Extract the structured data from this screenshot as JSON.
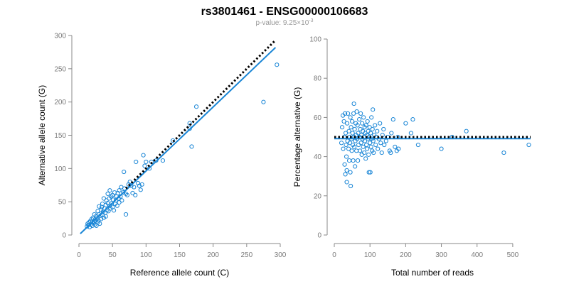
{
  "title": "rs3801461 - ENSG00000106683",
  "subtitle": {
    "prefix": "p-value: 9.25×10",
    "exponent": "-3"
  },
  "colors": {
    "points": "#1a86d6",
    "fit_line": "#1a86d6",
    "reference_line": "#000000",
    "axis": "#888888",
    "tick_text": "#7a7a7a"
  },
  "chart_data": [
    {
      "type": "scatter",
      "xlabel": "Reference allele count (C)",
      "ylabel": "Alternative allele count (G)",
      "xlim": [
        0,
        300
      ],
      "ylim": [
        0,
        300
      ],
      "xticks": [
        0,
        50,
        100,
        150,
        200,
        250,
        300
      ],
      "yticks": [
        0,
        50,
        100,
        150,
        200,
        250,
        300
      ],
      "grid": false,
      "lines": [
        {
          "role": "fit",
          "style": "solid",
          "x": [
            2,
            293
          ],
          "y": [
            2,
            282
          ]
        },
        {
          "role": "reference",
          "style": "dotted",
          "x": [
            70,
            293
          ],
          "y": [
            70,
            293
          ]
        }
      ],
      "points": [
        [
          12,
          13
        ],
        [
          13,
          17
        ],
        [
          14,
          15
        ],
        [
          15,
          19
        ],
        [
          16,
          12
        ],
        [
          17,
          21
        ],
        [
          18,
          16
        ],
        [
          19,
          24
        ],
        [
          20,
          14
        ],
        [
          20,
          19
        ],
        [
          21,
          26
        ],
        [
          22,
          18
        ],
        [
          23,
          20
        ],
        [
          23,
          31
        ],
        [
          24,
          16
        ],
        [
          25,
          22
        ],
        [
          25,
          28
        ],
        [
          26,
          14
        ],
        [
          27,
          25
        ],
        [
          28,
          19
        ],
        [
          28,
          36
        ],
        [
          29,
          22
        ],
        [
          30,
          31
        ],
        [
          30,
          43
        ],
        [
          31,
          17
        ],
        [
          32,
          29
        ],
        [
          33,
          38
        ],
        [
          33,
          24
        ],
        [
          34,
          42
        ],
        [
          35,
          30
        ],
        [
          35,
          47
        ],
        [
          36,
          35
        ],
        [
          37,
          26
        ],
        [
          37,
          55
        ],
        [
          38,
          40
        ],
        [
          39,
          33
        ],
        [
          40,
          45
        ],
        [
          40,
          28
        ],
        [
          41,
          52
        ],
        [
          42,
          38
        ],
        [
          43,
          48
        ],
        [
          43,
          62
        ],
        [
          44,
          36
        ],
        [
          45,
          55
        ],
        [
          46,
          44
        ],
        [
          46,
          67
        ],
        [
          47,
          40
        ],
        [
          48,
          58
        ],
        [
          49,
          48
        ],
        [
          50,
          42
        ],
        [
          50,
          60
        ],
        [
          51,
          53
        ],
        [
          52,
          37
        ],
        [
          53,
          64
        ],
        [
          54,
          47
        ],
        [
          55,
          52
        ],
        [
          56,
          58
        ],
        [
          57,
          44
        ],
        [
          58,
          63
        ],
        [
          59,
          55
        ],
        [
          60,
          49
        ],
        [
          60,
          67
        ],
        [
          62,
          58
        ],
        [
          63,
          72
        ],
        [
          64,
          52
        ],
        [
          66,
          64
        ],
        [
          67,
          95
        ],
        [
          68,
          70
        ],
        [
          70,
          62
        ],
        [
          70,
          31
        ],
        [
          72,
          60
        ],
        [
          74,
          76
        ],
        [
          76,
          80
        ],
        [
          78,
          74
        ],
        [
          80,
          63
        ],
        [
          82,
          72
        ],
        [
          84,
          60
        ],
        [
          85,
          110
        ],
        [
          88,
          78
        ],
        [
          90,
          74
        ],
        [
          92,
          68
        ],
        [
          94,
          76
        ],
        [
          96,
          120
        ],
        [
          98,
          104
        ],
        [
          100,
          110
        ],
        [
          105,
          100
        ],
        [
          108,
          110
        ],
        [
          115,
          112
        ],
        [
          125,
          112
        ],
        [
          140,
          142
        ],
        [
          165,
          168
        ],
        [
          165,
          160
        ],
        [
          168,
          133
        ],
        [
          175,
          193
        ],
        [
          275,
          200
        ],
        [
          295,
          256
        ]
      ]
    },
    {
      "type": "scatter",
      "xlabel": "Total number of reads",
      "ylabel": "Percentage alternative (G)",
      "xlim": [
        0,
        550
      ],
      "ylim": [
        0,
        100
      ],
      "xticks": [
        0,
        100,
        200,
        300,
        400,
        500
      ],
      "yticks": [
        0,
        20,
        40,
        60,
        80,
        100
      ],
      "grid": false,
      "lines": [
        {
          "role": "fit",
          "style": "solid",
          "x": [
            0,
            550
          ],
          "y": [
            49.2,
            49.2
          ]
        },
        {
          "role": "reference",
          "style": "dotted",
          "x": [
            0,
            550
          ],
          "y": [
            50,
            50
          ]
        }
      ],
      "points": [
        [
          20,
          47
        ],
        [
          22,
          55
        ],
        [
          24,
          61
        ],
        [
          25,
          44
        ],
        [
          27,
          58
        ],
        [
          28,
          50
        ],
        [
          29,
          36
        ],
        [
          30,
          62
        ],
        [
          31,
          31
        ],
        [
          32,
          52
        ],
        [
          33,
          46
        ],
        [
          34,
          40
        ],
        [
          35,
          33
        ],
        [
          35,
          27
        ],
        [
          36,
          57
        ],
        [
          37,
          48
        ],
        [
          38,
          62
        ],
        [
          40,
          44
        ],
        [
          41,
          53
        ],
        [
          42,
          38
        ],
        [
          43,
          50
        ],
        [
          44,
          47
        ],
        [
          45,
          60
        ],
        [
          45,
          32
        ],
        [
          46,
          25
        ],
        [
          47,
          55
        ],
        [
          48,
          49
        ],
        [
          49,
          43
        ],
        [
          50,
          58
        ],
        [
          51,
          52
        ],
        [
          52,
          46
        ],
        [
          53,
          38
        ],
        [
          54,
          62
        ],
        [
          55,
          50
        ],
        [
          55,
          67
        ],
        [
          56,
          45
        ],
        [
          57,
          54
        ],
        [
          58,
          35
        ],
        [
          59,
          48
        ],
        [
          60,
          57
        ],
        [
          61,
          51
        ],
        [
          62,
          43
        ],
        [
          63,
          63
        ],
        [
          64,
          49
        ],
        [
          65,
          56
        ],
        [
          66,
          38
        ],
        [
          67,
          52
        ],
        [
          68,
          46
        ],
        [
          70,
          59
        ],
        [
          71,
          50
        ],
        [
          72,
          43
        ],
        [
          73,
          54
        ],
        [
          74,
          62
        ],
        [
          75,
          47
        ],
        [
          76,
          51
        ],
        [
          77,
          41
        ],
        [
          78,
          57
        ],
        [
          79,
          49
        ],
        [
          80,
          53
        ],
        [
          81,
          45
        ],
        [
          82,
          60
        ],
        [
          83,
          50
        ],
        [
          84,
          42
        ],
        [
          85,
          55
        ],
        [
          86,
          48
        ],
        [
          87,
          52
        ],
        [
          88,
          39
        ],
        [
          89,
          56
        ],
        [
          90,
          46
        ],
        [
          91,
          51
        ],
        [
          92,
          44
        ],
        [
          93,
          58
        ],
        [
          94,
          49
        ],
        [
          95,
          53
        ],
        [
          96,
          41
        ],
        [
          97,
          32
        ],
        [
          98,
          50
        ],
        [
          99,
          55
        ],
        [
          100,
          47
        ],
        [
          101,
          32
        ],
        [
          102,
          52
        ],
        [
          103,
          45
        ],
        [
          104,
          60
        ],
        [
          105,
          49
        ],
        [
          106,
          43
        ],
        [
          107,
          54
        ],
        [
          108,
          64
        ],
        [
          109,
          48
        ],
        [
          110,
          42
        ],
        [
          112,
          51
        ],
        [
          114,
          56
        ],
        [
          116,
          46
        ],
        [
          118,
          50
        ],
        [
          120,
          53
        ],
        [
          122,
          44
        ],
        [
          125,
          49
        ],
        [
          128,
          57
        ],
        [
          130,
          47
        ],
        [
          133,
          42
        ],
        [
          135,
          51
        ],
        [
          138,
          54
        ],
        [
          140,
          46
        ],
        [
          145,
          48
        ],
        [
          150,
          50
        ],
        [
          155,
          43
        ],
        [
          158,
          42
        ],
        [
          160,
          52
        ],
        [
          165,
          59
        ],
        [
          170,
          45
        ],
        [
          175,
          43
        ],
        [
          178,
          50
        ],
        [
          180,
          44
        ],
        [
          200,
          57
        ],
        [
          215,
          52
        ],
        [
          220,
          59
        ],
        [
          235,
          46
        ],
        [
          300,
          44
        ],
        [
          330,
          50
        ],
        [
          370,
          53
        ],
        [
          475,
          42
        ],
        [
          545,
          46
        ]
      ]
    }
  ]
}
